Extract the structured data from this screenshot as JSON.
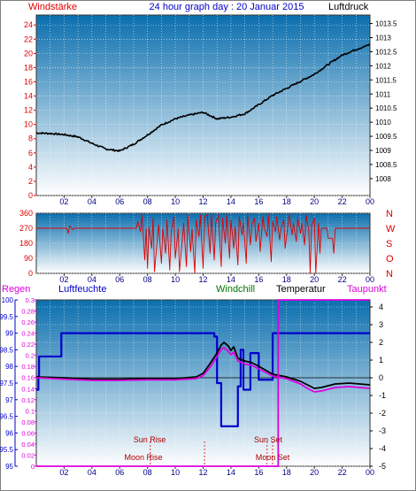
{
  "header": {
    "left_label": "Windstärke",
    "title": "24 hour graph day : 20 Januar 2015",
    "right_label": "Luftdruck"
  },
  "colors": {
    "red": "#dd0000",
    "blue": "#0000cc",
    "navy": "#000080",
    "green": "#007700",
    "black": "#000000",
    "magenta": "#dd00dd",
    "bg_top": "#0b6fae",
    "bg_bottom": "#ffffff",
    "grid": "#ffffff"
  },
  "chart_data": [
    {
      "type": "line",
      "panel": "top",
      "xlabels": [
        "02",
        "04",
        "06",
        "08",
        "10",
        "12",
        "14",
        "16",
        "18",
        "20",
        "22",
        "00"
      ],
      "x_range": [
        0,
        24
      ],
      "left_axis": {
        "title": "Windstärke",
        "ticks": [
          0,
          2,
          4,
          6,
          8,
          10,
          12,
          14,
          16,
          18,
          20,
          22,
          24
        ],
        "ylim": [
          0,
          25.4
        ]
      },
      "right_axis": {
        "title": "Luftdruck",
        "ticks": [
          1008,
          1008.5,
          1009,
          1009.5,
          1010,
          1010.5,
          1011,
          1011.5,
          1012,
          1012.5,
          1013,
          1013.5
        ],
        "ylim": [
          1007.4,
          1013.8
        ]
      },
      "series": [
        {
          "axis": "right",
          "color": "black",
          "points": [
            [
              0,
              1009.62
            ],
            [
              1,
              1009.6
            ],
            [
              2,
              1009.56
            ],
            [
              3,
              1009.48
            ],
            [
              4,
              1009.25
            ],
            [
              5,
              1009.05
            ],
            [
              6,
              1008.98
            ],
            [
              7,
              1009.22
            ],
            [
              8,
              1009.55
            ],
            [
              9,
              1009.9
            ],
            [
              10,
              1010.12
            ],
            [
              11,
              1010.25
            ],
            [
              12,
              1010.35
            ],
            [
              13,
              1010.12
            ],
            [
              14,
              1010.18
            ],
            [
              15,
              1010.3
            ],
            [
              16,
              1010.62
            ],
            [
              17,
              1010.95
            ],
            [
              18,
              1011.2
            ],
            [
              19,
              1011.45
            ],
            [
              20,
              1011.7
            ],
            [
              21,
              1012.05
            ],
            [
              22,
              1012.38
            ],
            [
              23,
              1012.58
            ],
            [
              24,
              1012.75
            ]
          ]
        }
      ]
    },
    {
      "type": "line",
      "panel": "middle",
      "xlabels": [
        "02",
        "04",
        "06",
        "08",
        "10",
        "12",
        "14",
        "16",
        "18",
        "20",
        "22",
        "00"
      ],
      "x_range": [
        0,
        24
      ],
      "left_axis": {
        "ticks": [
          0,
          90,
          180,
          270,
          360
        ],
        "ylim": [
          0,
          360
        ]
      },
      "right_axis": {
        "ticks": [
          "N",
          "W",
          "S",
          "O",
          "N"
        ]
      },
      "series": [
        {
          "axis": "left",
          "color": "red",
          "points": [
            [
              0,
              270
            ],
            [
              2.2,
              270
            ],
            [
              2.3,
              240
            ],
            [
              2.4,
              285
            ],
            [
              2.6,
              262
            ],
            [
              2.7,
              270
            ],
            [
              7.2,
              270
            ],
            [
              7.3,
              310
            ],
            [
              7.5,
              250
            ],
            [
              7.6,
              350
            ],
            [
              7.8,
              80
            ],
            [
              7.9,
              270
            ],
            [
              8.0,
              30
            ],
            [
              8.1,
              280
            ],
            [
              8.3,
              150
            ],
            [
              8.4,
              330
            ],
            [
              8.5,
              10
            ],
            [
              8.7,
              200
            ],
            [
              8.8,
              290
            ],
            [
              9.0,
              60
            ],
            [
              9.1,
              270
            ],
            [
              9.3,
              120
            ],
            [
              9.4,
              320
            ],
            [
              9.6,
              20
            ],
            [
              9.7,
              250
            ],
            [
              9.9,
              340
            ],
            [
              10.0,
              90
            ],
            [
              10.2,
              270
            ],
            [
              10.3,
              10
            ],
            [
              10.5,
              200
            ],
            [
              10.6,
              300
            ],
            [
              10.8,
              40
            ],
            [
              10.9,
              350
            ],
            [
              11.1,
              130
            ],
            [
              11.2,
              270
            ],
            [
              11.4,
              0
            ],
            [
              11.5,
              320
            ],
            [
              11.7,
              220
            ],
            [
              11.8,
              350
            ],
            [
              12.0,
              30
            ],
            [
              12.1,
              340
            ],
            [
              12.3,
              350
            ],
            [
              12.5,
              120
            ],
            [
              12.6,
              350
            ],
            [
              12.8,
              80
            ],
            [
              12.9,
              300
            ],
            [
              13.1,
              350
            ],
            [
              13.3,
              40
            ],
            [
              13.4,
              330
            ],
            [
              13.6,
              180
            ],
            [
              13.7,
              350
            ],
            [
              13.9,
              90
            ],
            [
              14.0,
              320
            ],
            [
              14.2,
              150
            ],
            [
              14.3,
              280
            ],
            [
              14.5,
              50
            ],
            [
              14.6,
              340
            ],
            [
              14.8,
              230
            ],
            [
              14.9,
              300
            ],
            [
              15.1,
              60
            ],
            [
              15.2,
              350
            ],
            [
              15.4,
              170
            ],
            [
              15.5,
              290
            ],
            [
              15.7,
              330
            ],
            [
              15.8,
              190
            ],
            [
              16.0,
              300
            ],
            [
              16.1,
              130
            ],
            [
              16.3,
              340
            ],
            [
              16.4,
              270
            ],
            [
              16.6,
              220
            ],
            [
              16.7,
              350
            ],
            [
              16.9,
              70
            ],
            [
              17.0,
              310
            ],
            [
              17.2,
              250
            ],
            [
              17.3,
              340
            ],
            [
              17.5,
              200
            ],
            [
              17.6,
              270
            ],
            [
              17.8,
              320
            ],
            [
              17.9,
              150
            ],
            [
              18.1,
              290
            ],
            [
              18.2,
              350
            ],
            [
              18.4,
              230
            ],
            [
              18.5,
              300
            ],
            [
              18.7,
              190
            ],
            [
              18.8,
              330
            ],
            [
              19.0,
              240
            ],
            [
              19.1,
              300
            ],
            [
              19.3,
              170
            ],
            [
              19.4,
              350
            ],
            [
              19.6,
              260
            ],
            [
              19.7,
              0
            ],
            [
              19.8,
              290
            ],
            [
              20.0,
              330
            ],
            [
              20.1,
              0
            ],
            [
              20.3,
              300
            ],
            [
              20.4,
              120
            ],
            [
              20.5,
              270
            ],
            [
              20.9,
              270
            ],
            [
              21.0,
              210
            ],
            [
              21.3,
              210
            ],
            [
              21.4,
              120
            ],
            [
              21.5,
              270
            ],
            [
              24,
              270
            ]
          ]
        }
      ]
    },
    {
      "type": "line",
      "panel": "bottom",
      "xlabels": [
        "02",
        "04",
        "06",
        "08",
        "10",
        "12",
        "14",
        "16",
        "18",
        "20",
        "22",
        "00"
      ],
      "x_range": [
        0,
        24
      ],
      "left_axis": {
        "title": "Regen",
        "ticks": [
          0,
          0.02,
          0.04,
          0.06,
          0.08,
          0.1,
          0.12,
          0.14,
          0.16,
          0.18,
          0.2,
          0.22,
          0.24,
          0.26,
          0.28,
          0.3
        ],
        "ylim": [
          0,
          0.3
        ]
      },
      "humidity_axis": {
        "title": "Luftfeuchte",
        "ticks": [
          95,
          95.5,
          96,
          96.5,
          97,
          97.5,
          98,
          98.5,
          99,
          99.5,
          100
        ],
        "ylim": [
          95,
          100
        ]
      },
      "right_axis": {
        "title": "Taupunkt",
        "ticks": [
          -5,
          -4,
          -3,
          -2,
          -1,
          0,
          1,
          2,
          3,
          4
        ],
        "ylim": [
          -5,
          4.4
        ]
      },
      "legend": [
        "Regen",
        "Luftfeuchte",
        "Windchill",
        "Temperatur",
        "Taupunkt"
      ],
      "annotations": [
        "Sun Rise",
        "Moon Rise",
        "Sun Set",
        "Moon Set"
      ],
      "series": [
        {
          "name": "Luftfeuchte",
          "axis": "humidity",
          "color": "blue",
          "points": [
            [
              0,
              97.3
            ],
            [
              0.15,
              97.3
            ],
            [
              0.15,
              97.7
            ],
            [
              0.2,
              97.7
            ],
            [
              0.2,
              98.3
            ],
            [
              1.8,
              98.3
            ],
            [
              1.8,
              99.0
            ],
            [
              12.8,
              99.0
            ],
            [
              12.8,
              98.9
            ],
            [
              13.0,
              98.9
            ],
            [
              13.0,
              97.5
            ],
            [
              13.3,
              97.5
            ],
            [
              13.3,
              96.2
            ],
            [
              14.5,
              96.2
            ],
            [
              14.5,
              97.4
            ],
            [
              14.7,
              97.4
            ],
            [
              14.7,
              98.5
            ],
            [
              14.9,
              98.5
            ],
            [
              14.9,
              97.3
            ],
            [
              15.4,
              97.3
            ],
            [
              15.4,
              98.4
            ],
            [
              16.0,
              98.4
            ],
            [
              16.0,
              97.6
            ],
            [
              17.0,
              97.6
            ],
            [
              17.0,
              99.0
            ],
            [
              24,
              99.0
            ]
          ]
        },
        {
          "name": "Temperatur",
          "axis": "right",
          "color": "black",
          "points": [
            [
              0,
              0.05
            ],
            [
              2,
              0.0
            ],
            [
              4,
              -0.08
            ],
            [
              6,
              -0.08
            ],
            [
              8,
              -0.05
            ],
            [
              10,
              -0.05
            ],
            [
              11.5,
              0.05
            ],
            [
              12,
              0.25
            ],
            [
              12.5,
              0.8
            ],
            [
              13,
              1.4
            ],
            [
              13.3,
              1.85
            ],
            [
              13.5,
              2.0
            ],
            [
              13.8,
              1.8
            ],
            [
              14.0,
              1.55
            ],
            [
              14.2,
              1.75
            ],
            [
              14.5,
              1.1
            ],
            [
              15,
              0.95
            ],
            [
              15.5,
              0.85
            ],
            [
              16,
              0.65
            ],
            [
              17,
              0.2
            ],
            [
              18,
              0.05
            ],
            [
              19,
              -0.2
            ],
            [
              19.5,
              -0.4
            ],
            [
              20,
              -0.6
            ],
            [
              20.5,
              -0.55
            ],
            [
              21.5,
              -0.35
            ],
            [
              22.5,
              -0.3
            ],
            [
              24,
              -0.4
            ]
          ]
        },
        {
          "name": "Taupunkt",
          "axis": "right",
          "color": "magenta",
          "points": [
            [
              0,
              0.0
            ],
            [
              2,
              -0.08
            ],
            [
              4,
              -0.15
            ],
            [
              6,
              -0.15
            ],
            [
              8,
              -0.12
            ],
            [
              10,
              -0.12
            ],
            [
              11.5,
              -0.05
            ],
            [
              12,
              0.12
            ],
            [
              12.5,
              0.6
            ],
            [
              13,
              1.2
            ],
            [
              13.3,
              1.6
            ],
            [
              13.5,
              1.7
            ],
            [
              13.8,
              1.5
            ],
            [
              14.0,
              1.3
            ],
            [
              14.2,
              1.45
            ],
            [
              14.5,
              0.95
            ],
            [
              15,
              0.78
            ],
            [
              15.5,
              0.7
            ],
            [
              16,
              0.5
            ],
            [
              17,
              0.1
            ],
            [
              18,
              -0.05
            ],
            [
              19,
              -0.35
            ],
            [
              19.5,
              -0.6
            ],
            [
              20,
              -0.8
            ],
            [
              20.5,
              -0.75
            ],
            [
              21.5,
              -0.55
            ],
            [
              22.5,
              -0.5
            ],
            [
              24,
              -0.6
            ]
          ]
        },
        {
          "name": "Regen",
          "axis": "left",
          "color": "magenta",
          "points": [
            [
              0,
              0
            ],
            [
              17.4,
              0
            ],
            [
              17.4,
              0.3
            ],
            [
              24,
              0.3
            ]
          ]
        }
      ]
    }
  ]
}
